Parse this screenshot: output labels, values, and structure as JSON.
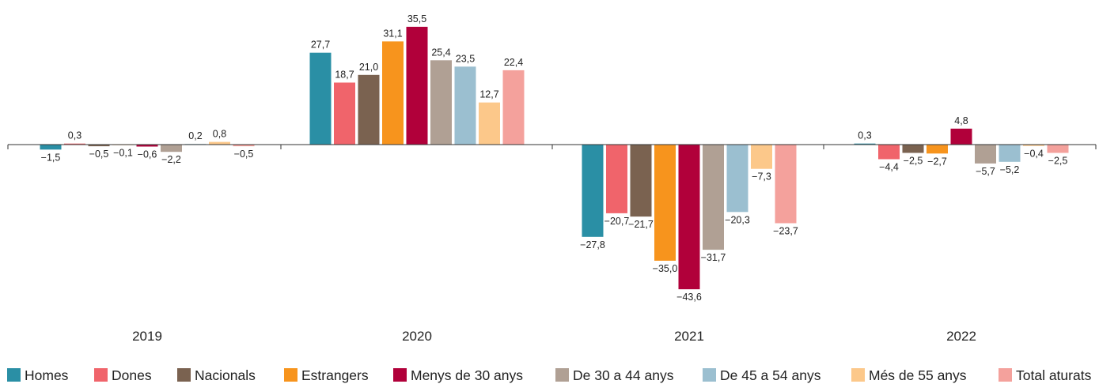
{
  "chart_data": {
    "type": "bar",
    "title": "",
    "xlabel": "",
    "ylabel": "",
    "categories": [
      "2019",
      "2020",
      "2021",
      "2022"
    ],
    "ylim": [
      -50,
      40
    ],
    "grid": false,
    "legend_position": "bottom",
    "series": [
      {
        "name": "Homes",
        "color": "#2a8fa5",
        "values": [
          -1.5,
          27.7,
          -27.8,
          0.3
        ],
        "labels": [
          "−1,5",
          "27,7",
          "−27,8",
          "0,3"
        ]
      },
      {
        "name": "Dones",
        "color": "#f0646b",
        "values": [
          0.3,
          18.7,
          -20.7,
          -4.4
        ],
        "labels": [
          "0,3",
          "18,7",
          "−20,7",
          "−4,4"
        ]
      },
      {
        "name": "Nacionals",
        "color": "#7a6250",
        "values": [
          -0.5,
          21.0,
          -21.7,
          -2.5
        ],
        "labels": [
          "−0,5",
          "21,0",
          "−21,7",
          "−2,5"
        ]
      },
      {
        "name": "Estrangers",
        "color": "#f7941d",
        "values": [
          -0.1,
          31.1,
          -35.0,
          -2.7
        ],
        "labels": [
          "−0,1",
          "31,1",
          "−35,0",
          "−2,7"
        ]
      },
      {
        "name": "Menys de 30 anys",
        "color": "#b1003a",
        "values": [
          -0.6,
          35.5,
          -43.6,
          4.8
        ],
        "labels": [
          "−0,6",
          "35,5",
          "−43,6",
          "4,8"
        ]
      },
      {
        "name": "De 30 a 44 anys",
        "color": "#b0a094",
        "values": [
          -2.2,
          25.4,
          -31.7,
          -5.7
        ],
        "labels": [
          "−2,2",
          "25,4",
          "−31,7",
          "−5,7"
        ]
      },
      {
        "name": "De 45 a 54 anys",
        "color": "#9bbfd0",
        "values": [
          0.2,
          23.5,
          -20.3,
          -5.2
        ],
        "labels": [
          "0,2",
          "23,5",
          "−20,3",
          "−5,2"
        ]
      },
      {
        "name": "Més de 55 anys",
        "color": "#fcc88a",
        "values": [
          0.8,
          12.7,
          -7.3,
          -0.4
        ],
        "labels": [
          "0,8",
          "12,7",
          "−7,3",
          "−0,4"
        ]
      },
      {
        "name": "Total aturats",
        "color": "#f4a19c",
        "values": [
          -0.5,
          22.4,
          -23.7,
          -2.5
        ],
        "labels": [
          "−0,5",
          "22,4",
          "−23,7",
          "−2,5"
        ]
      }
    ]
  }
}
